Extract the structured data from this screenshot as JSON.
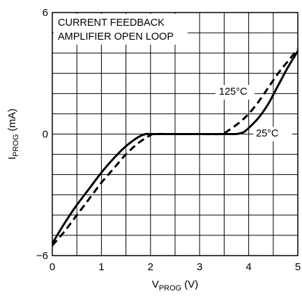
{
  "chart_data": {
    "type": "line",
    "title_lines": [
      "CURRENT FEEDBACK",
      "AMPLIFIER OPEN LOOP"
    ],
    "xlabel": {
      "main": "V",
      "sub": "PROG",
      "unit": " (V)"
    },
    "ylabel": {
      "main": "I",
      "sub": "PROG",
      "unit": " (mA)"
    },
    "xlim": [
      0,
      5
    ],
    "ylim": [
      -6,
      6
    ],
    "x_ticks": [
      {
        "value": 0,
        "label": "0"
      },
      {
        "value": 1,
        "label": "1"
      },
      {
        "value": 2,
        "label": "2"
      },
      {
        "value": 3,
        "label": "3"
      },
      {
        "value": 4,
        "label": "4"
      },
      {
        "value": 5,
        "label": "5"
      }
    ],
    "y_ticks": [
      {
        "value": 6,
        "label": "6"
      },
      {
        "value": 0,
        "label": "0"
      },
      {
        "value": -6,
        "label": "−6"
      }
    ],
    "grid": {
      "x_step": 0.5,
      "y_step": 1
    },
    "series": [
      {
        "name": "25°C",
        "style": "solid",
        "x": [
          0,
          0.25,
          0.5,
          0.75,
          1.0,
          1.25,
          1.5,
          1.75,
          1.9,
          2.0,
          2.5,
          3.0,
          3.5,
          3.7,
          3.8,
          3.9,
          4.0,
          4.2,
          4.4,
          4.6,
          4.8,
          5.0
        ],
        "y": [
          -5.4,
          -4.4,
          -3.5,
          -2.7,
          -1.9,
          -1.2,
          -0.6,
          -0.15,
          0,
          0,
          0,
          0,
          0,
          0,
          0.02,
          0.1,
          0.3,
          0.8,
          1.5,
          2.4,
          3.3,
          4.1
        ]
      },
      {
        "name": "125°C",
        "style": "dashed",
        "x": [
          0,
          0.25,
          0.5,
          0.75,
          1.0,
          1.25,
          1.5,
          1.75,
          2.0,
          2.1,
          2.5,
          3.0,
          3.4,
          3.5,
          3.6,
          3.8,
          4.0,
          4.2,
          4.4,
          4.6,
          4.8,
          5.0
        ],
        "y": [
          -5.5,
          -4.8,
          -4.0,
          -3.2,
          -2.4,
          -1.7,
          -1.0,
          -0.45,
          -0.05,
          0,
          0,
          0,
          0,
          0.05,
          0.2,
          0.55,
          1.0,
          1.6,
          2.3,
          3.0,
          3.6,
          4.2
        ]
      }
    ],
    "annotations": [
      {
        "text": "125°C",
        "series": "125°C"
      },
      {
        "text": "25°C",
        "series": "25°C"
      }
    ]
  }
}
